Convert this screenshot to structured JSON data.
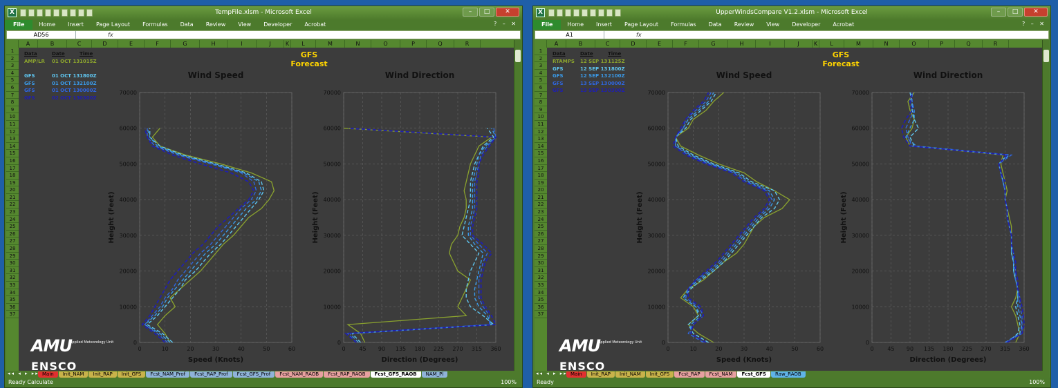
{
  "windows": [
    {
      "title": "TempFile.xlsm - Microsoft Excel",
      "name_box": "AD56",
      "fx": "fx",
      "ribbon_tabs": [
        "File",
        "Home",
        "Insert",
        "Page Layout",
        "Formulas",
        "Data",
        "Review",
        "View",
        "Developer",
        "Acrobat"
      ],
      "columns": [
        "A",
        "B",
        "C",
        "D",
        "E",
        "F",
        "G",
        "H",
        "I",
        "J",
        "K",
        "L",
        "M",
        "N",
        "O",
        "P",
        "Q",
        "R"
      ],
      "rows": [
        "1",
        "2",
        "3",
        "4",
        "5",
        "6",
        "7",
        "8",
        "9",
        "10",
        "11",
        "12",
        "13",
        "14",
        "15",
        "16",
        "17",
        "18",
        "19",
        "20",
        "21",
        "22",
        "23",
        "24",
        "25",
        "26",
        "27",
        "28",
        "29",
        "30",
        "31",
        "32",
        "33",
        "34",
        "35",
        "36",
        "37"
      ],
      "forecast_title": "GFS Forecast",
      "table_headers": [
        "Data",
        "Date",
        "Time"
      ],
      "table_rows": [
        {
          "data": "AMP/LR",
          "date": "01 OCT 13",
          "time": "1015Z",
          "color": "#8ba32e"
        },
        {
          "data": "",
          "date": "",
          "time": "",
          "color": "#000"
        },
        {
          "data": "GFS",
          "date": "01 OCT 13",
          "time": "1800Z",
          "color": "#5fc6f0"
        },
        {
          "data": "GFS",
          "date": "01 OCT 13",
          "time": "2100Z",
          "color": "#3a9ae8"
        },
        {
          "data": "GFS",
          "date": "01 OCT 13",
          "time": "0000Z",
          "color": "#2f66e0"
        },
        {
          "data": "GFS",
          "date": "02 OCT 13",
          "time": "0300Z",
          "color": "#1f1fb0"
        }
      ],
      "sheet_tabs": [
        "Main",
        "Init_NAM",
        "Init_RAP",
        "Init_GFS",
        "Fcst_NAM_Prof",
        "Fcst_RAP_Prof",
        "Fcst_GFS_Prof",
        "Fcst_NAM_RAOB",
        "Fcst_RAP_RAOB",
        "Fcst_GFS_RAOB",
        "NAM_Pl"
      ],
      "status_left": "Ready   Calculate",
      "zoom": "100%"
    },
    {
      "title": "UpperWindsCompare V1.2.xlsm - Microsoft Excel",
      "name_box": "A1",
      "fx": "fx",
      "ribbon_tabs": [
        "File",
        "Home",
        "Insert",
        "Page Layout",
        "Formulas",
        "Data",
        "Review",
        "View",
        "Developer",
        "Acrobat"
      ],
      "columns": [
        "A",
        "B",
        "C",
        "D",
        "E",
        "F",
        "G",
        "H",
        "I",
        "J",
        "K",
        "L",
        "M",
        "N",
        "O",
        "P",
        "Q",
        "R"
      ],
      "rows": [
        "1",
        "2",
        "3",
        "4",
        "5",
        "6",
        "7",
        "8",
        "9",
        "10",
        "11",
        "12",
        "13",
        "14",
        "15",
        "16",
        "17",
        "18",
        "19",
        "20",
        "21",
        "22",
        "23",
        "24",
        "25",
        "26",
        "27",
        "28",
        "29",
        "30",
        "31",
        "32",
        "33",
        "34",
        "35",
        "36",
        "37"
      ],
      "forecast_title": "GFS Forecast",
      "table_headers": [
        "Data",
        "Date",
        "Time"
      ],
      "table_rows": [
        {
          "data": "RTAMPS",
          "date": "12 SEP 13",
          "time": "1125Z",
          "color": "#8ba32e"
        },
        {
          "data": "GFS",
          "date": "12 SEP 13",
          "time": "1800Z",
          "color": "#5fc6f0"
        },
        {
          "data": "GFS",
          "date": "12 SEP 13",
          "time": "2100Z",
          "color": "#3a9ae8"
        },
        {
          "data": "GFS",
          "date": "13 SEP 13",
          "time": "0000Z",
          "color": "#2f66e0"
        },
        {
          "data": "GFS",
          "date": "13 SEP 13",
          "time": "0300Z",
          "color": "#1f1fb0"
        }
      ],
      "sheet_tabs": [
        "Main",
        "Init_RAP",
        "Init_NAM",
        "Init_GFS",
        "Fcst_RAP",
        "Fcst_NAM",
        "Fcst_GFS",
        "Raw_RAOB"
      ],
      "status_left": "Ready",
      "zoom": "100%"
    }
  ],
  "logo": {
    "amu": "AMU",
    "amu_sub": "Applied Meteorology Unit",
    "ensco": "ENSCO"
  },
  "colors": {
    "obs": "#8ba32e",
    "gfs1": "#5fc6f0",
    "gfs2": "#3a9ae8",
    "gfs3": "#2f66e0",
    "gfs4": "#1f1fb0"
  },
  "chart_data": [
    {
      "type": "line",
      "title": "Wind Speed",
      "xlabel": "Speed (Knots)",
      "ylabel": "Height (Feet)",
      "xlim": [
        0,
        60
      ],
      "ylim": [
        0,
        70000
      ],
      "xticks": [
        "0",
        "10",
        "20",
        "30",
        "40",
        "50",
        "60"
      ],
      "yticks": [
        "0",
        "10000",
        "20000",
        "30000",
        "40000",
        "50000",
        "60000",
        "70000"
      ],
      "y": [
        0,
        2500,
        5000,
        7500,
        10000,
        12500,
        15000,
        17500,
        20000,
        22500,
        25000,
        27500,
        30000,
        32500,
        35000,
        37500,
        40000,
        42500,
        45000,
        47500,
        50000,
        52500,
        55000,
        57500,
        60000
      ],
      "series": [
        {
          "values": [
            12,
            10,
            7,
            10,
            14,
            12,
            16,
            20,
            24,
            27,
            30,
            33,
            37,
            40,
            43,
            48,
            51,
            53,
            52,
            44,
            32,
            18,
            8,
            5,
            8
          ]
        },
        {
          "values": [
            13,
            9,
            3,
            7,
            10,
            13,
            16,
            18,
            22,
            25,
            28,
            32,
            35,
            38,
            41,
            44,
            47,
            49,
            48,
            42,
            30,
            17,
            8,
            4,
            4
          ]
        },
        {
          "values": [
            12,
            8,
            2,
            6,
            9,
            11,
            14,
            17,
            20,
            23,
            26,
            30,
            33,
            36,
            39,
            42,
            46,
            48,
            47,
            41,
            29,
            16,
            7,
            4,
            3
          ]
        },
        {
          "values": [
            11,
            7,
            2,
            5,
            8,
            10,
            13,
            15,
            18,
            21,
            24,
            28,
            31,
            34,
            37,
            40,
            44,
            46,
            45,
            40,
            28,
            15,
            6,
            3,
            3
          ]
        },
        {
          "values": [
            10,
            6,
            1,
            4,
            6,
            8,
            10,
            12,
            15,
            18,
            21,
            25,
            28,
            31,
            35,
            39,
            43,
            45,
            43,
            36,
            24,
            13,
            5,
            3,
            2
          ]
        }
      ]
    },
    {
      "type": "line",
      "title": "Wind Direction",
      "xlabel": "Direction (Degrees)",
      "ylabel": "Height (Feet)",
      "xlim": [
        0,
        360
      ],
      "ylim": [
        0,
        70000
      ],
      "xticks": [
        "0",
        "45",
        "90",
        "135",
        "180",
        "225",
        "270",
        "315",
        "360"
      ],
      "yticks": [
        "0",
        "10000",
        "20000",
        "30000",
        "40000",
        "50000",
        "60000",
        "70000"
      ],
      "y": [
        0,
        2500,
        5000,
        7500,
        10000,
        12500,
        15000,
        17500,
        20000,
        22500,
        25000,
        27500,
        30000,
        32500,
        35000,
        37500,
        40000,
        42500,
        45000,
        47500,
        50000,
        52500,
        55000,
        57500,
        60000
      ],
      "series": [
        {
          "values": [
            50,
            40,
            10,
            290,
            270,
            280,
            290,
            300,
            270,
            260,
            250,
            255,
            270,
            275,
            285,
            290,
            290,
            285,
            290,
            295,
            300,
            310,
            320,
            350,
            0
          ]
        },
        {
          "values": [
            40,
            20,
            355,
            330,
            300,
            290,
            290,
            295,
            300,
            310,
            320,
            300,
            280,
            285,
            290,
            295,
            300,
            300,
            300,
            305,
            310,
            320,
            330,
            355,
            340
          ]
        },
        {
          "values": [
            35,
            15,
            350,
            340,
            320,
            310,
            310,
            315,
            320,
            325,
            330,
            310,
            295,
            295,
            300,
            305,
            305,
            305,
            305,
            310,
            315,
            320,
            335,
            360,
            350
          ]
        },
        {
          "values": [
            30,
            10,
            345,
            345,
            330,
            320,
            320,
            320,
            325,
            330,
            340,
            320,
            300,
            300,
            305,
            310,
            310,
            310,
            310,
            315,
            320,
            325,
            340,
            360,
            355
          ]
        },
        {
          "values": [
            30,
            5,
            360,
            350,
            335,
            325,
            325,
            325,
            330,
            335,
            350,
            330,
            305,
            305,
            310,
            315,
            315,
            315,
            315,
            320,
            320,
            330,
            345,
            360,
            10
          ]
        }
      ]
    },
    {
      "type": "line",
      "title": "Wind Speed",
      "xlabel": "Speed (Knots)",
      "ylabel": "Height (Feet)",
      "xlim": [
        0,
        60
      ],
      "ylim": [
        0,
        70000
      ],
      "xticks": [
        "0",
        "10",
        "20",
        "30",
        "40",
        "50",
        "60"
      ],
      "yticks": [
        "0",
        "10000",
        "20000",
        "30000",
        "40000",
        "50000",
        "60000",
        "70000"
      ],
      "y": [
        0,
        2500,
        5000,
        7500,
        10000,
        12500,
        15000,
        17500,
        20000,
        22500,
        25000,
        27500,
        30000,
        32500,
        35000,
        37500,
        40000,
        42500,
        45000,
        47500,
        50000,
        52500,
        55000,
        57500,
        60000,
        62500,
        65000,
        67500,
        70000
      ],
      "series": [
        {
          "values": [
            18,
            12,
            8,
            12,
            10,
            5,
            8,
            14,
            18,
            22,
            27,
            30,
            32,
            34,
            38,
            45,
            48,
            42,
            35,
            30,
            20,
            12,
            5,
            3,
            8,
            10,
            15,
            18,
            22
          ]
        },
        {
          "values": [
            16,
            10,
            8,
            12,
            11,
            6,
            9,
            13,
            18,
            22,
            25,
            28,
            31,
            34,
            37,
            42,
            44,
            42,
            33,
            28,
            18,
            10,
            4,
            3,
            7,
            9,
            13,
            17,
            19
          ]
        },
        {
          "values": [
            15,
            9,
            9,
            13,
            11,
            6,
            8,
            12,
            17,
            21,
            24,
            27,
            30,
            33,
            36,
            40,
            42,
            40,
            32,
            27,
            17,
            9,
            3,
            3,
            6,
            8,
            12,
            16,
            18
          ]
        },
        {
          "values": [
            14,
            8,
            10,
            14,
            12,
            7,
            8,
            11,
            16,
            20,
            23,
            26,
            29,
            32,
            35,
            39,
            41,
            39,
            31,
            26,
            16,
            8,
            3,
            3,
            6,
            7,
            11,
            15,
            17
          ]
        },
        {
          "values": [
            15,
            9,
            10,
            14,
            13,
            8,
            8,
            11,
            15,
            19,
            22,
            25,
            28,
            31,
            34,
            38,
            40,
            38,
            30,
            25,
            15,
            7,
            2,
            3,
            5,
            7,
            10,
            14,
            16
          ]
        }
      ]
    },
    {
      "type": "line",
      "title": "Wind Direction",
      "xlabel": "Direction (Degrees)",
      "ylabel": "Height (Feet)",
      "xlim": [
        0,
        360
      ],
      "ylim": [
        0,
        70000
      ],
      "xticks": [
        "0",
        "45",
        "90",
        "135",
        "180",
        "225",
        "270",
        "315",
        "360"
      ],
      "yticks": [
        "0",
        "10000",
        "20000",
        "30000",
        "40000",
        "50000",
        "60000",
        "70000"
      ],
      "y": [
        0,
        2500,
        5000,
        7500,
        10000,
        12500,
        15000,
        17500,
        20000,
        22500,
        25000,
        27500,
        30000,
        32500,
        35000,
        37500,
        40000,
        42500,
        45000,
        47500,
        50000,
        52500,
        55000,
        57500,
        60000,
        62500,
        65000,
        67500,
        70000
      ],
      "series": [
        {
          "values": [
            340,
            350,
            345,
            340,
            330,
            340,
            345,
            340,
            335,
            335,
            330,
            330,
            330,
            330,
            325,
            320,
            315,
            320,
            315,
            310,
            305,
            310,
            90,
            80,
            95,
            100,
            90,
            85,
            100
          ]
        },
        {
          "values": [
            320,
            345,
            350,
            345,
            340,
            345,
            345,
            340,
            335,
            335,
            330,
            330,
            330,
            325,
            320,
            320,
            315,
            315,
            310,
            305,
            300,
            320,
            100,
            90,
            110,
            100,
            95,
            95,
            90
          ]
        },
        {
          "values": [
            315,
            350,
            355,
            350,
            345,
            345,
            345,
            340,
            335,
            335,
            330,
            330,
            330,
            325,
            320,
            320,
            315,
            315,
            310,
            305,
            300,
            325,
            105,
            80,
            90,
            100,
            100,
            90,
            95
          ]
        },
        {
          "values": [
            315,
            355,
            355,
            355,
            350,
            350,
            345,
            340,
            340,
            335,
            335,
            330,
            330,
            325,
            320,
            320,
            315,
            315,
            310,
            305,
            300,
            330,
            95,
            85,
            80,
            90,
            100,
            95,
            95
          ]
        },
        {
          "values": [
            320,
            355,
            360,
            358,
            355,
            350,
            345,
            345,
            340,
            340,
            335,
            330,
            330,
            325,
            320,
            320,
            315,
            315,
            315,
            305,
            300,
            320,
            90,
            75,
            70,
            80,
            95,
            90,
            95
          ]
        }
      ]
    }
  ]
}
